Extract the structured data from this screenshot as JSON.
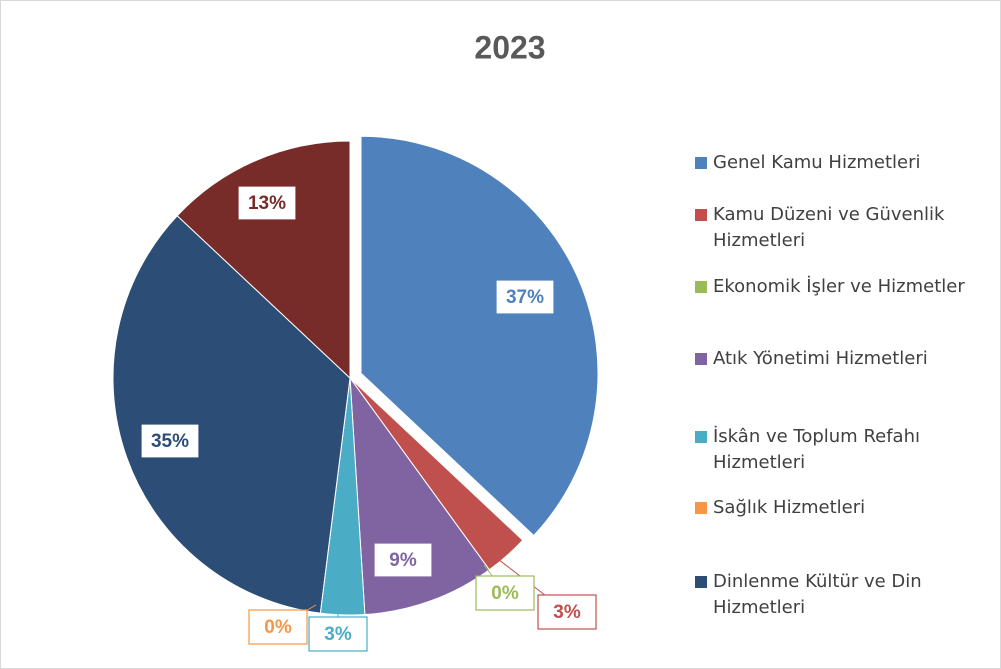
{
  "chart_data": {
    "type": "pie",
    "title": "2023",
    "categories": [
      "Genel Kamu Hizmetleri",
      "Kamu Düzeni ve Güvenlik Hizmetleri",
      "Ekonomik İşler ve Hizmetler",
      "Atık Yönetimi Hizmetleri",
      "İskân ve Toplum Refahı Hizmetleri",
      "Sağlık Hizmetleri",
      "Dinlenme Kültür ve Din Hizmetleri",
      null
    ],
    "values": [
      37,
      3,
      0,
      9,
      3,
      0,
      35,
      13
    ],
    "value_labels": [
      "37%",
      "3%",
      "0%",
      "9%",
      "3%",
      "0%",
      "35%",
      "13%"
    ],
    "colors": [
      "#4f81bd",
      "#c0504d",
      "#9bbb59",
      "#8064a2",
      "#4bacc6",
      "#f79646",
      "#2c4d75",
      "#772c2a"
    ],
    "legend": "right"
  }
}
